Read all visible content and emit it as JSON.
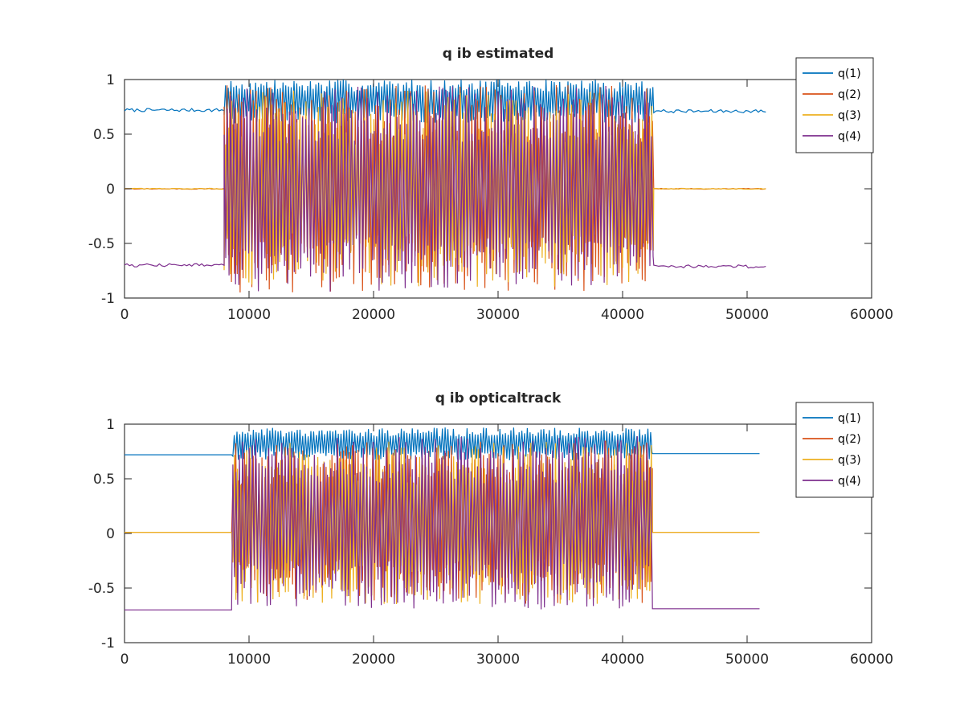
{
  "chart_data": [
    {
      "type": "line",
      "title": "q ib estimated",
      "xlabel": "",
      "ylabel": "",
      "xlim": [
        0,
        60000
      ],
      "ylim": [
        -1,
        1
      ],
      "xticks": [
        0,
        10000,
        20000,
        30000,
        40000,
        50000,
        60000
      ],
      "xtick_labels": [
        "0",
        "10000",
        "20000",
        "30000",
        "40000",
        "50000",
        "60000"
      ],
      "yticks": [
        -1,
        -0.5,
        0,
        0.5,
        1
      ],
      "ytick_labels": [
        "-1",
        "-0.5",
        "0",
        "0.5",
        "1"
      ],
      "grid": false,
      "legend_position": "top-right",
      "x_end": 51600,
      "active_range": [
        8000,
        42500
      ],
      "series": [
        {
          "name": "q(1)",
          "color": "#0072BD",
          "rest_values": [
            0.72,
            0.71
          ],
          "noise": 0.015,
          "active_level": 0.8,
          "active_spread": 0.2
        },
        {
          "name": "q(2)",
          "color": "#D95319",
          "rest_values": [
            0.0,
            0.0
          ],
          "noise": 0.004,
          "active_level": 0.0,
          "active_spread": 0.95
        },
        {
          "name": "q(3)",
          "color": "#EDB120",
          "rest_values": [
            0.0,
            0.0
          ],
          "noise": 0.004,
          "active_level": 0.0,
          "active_spread": 0.9
        },
        {
          "name": "q(4)",
          "color": "#7E2F8E",
          "rest_values": [
            -0.7,
            -0.71
          ],
          "noise": 0.015,
          "active_level": 0.0,
          "active_spread": 0.95
        }
      ]
    },
    {
      "type": "line",
      "title": "q ib opticaltrack",
      "xlabel": "",
      "ylabel": "",
      "xlim": [
        0,
        60000
      ],
      "ylim": [
        -1,
        1
      ],
      "xticks": [
        0,
        10000,
        20000,
        30000,
        40000,
        50000,
        60000
      ],
      "xtick_labels": [
        "0",
        "10000",
        "20000",
        "30000",
        "40000",
        "50000",
        "60000"
      ],
      "yticks": [
        -1,
        -0.5,
        0,
        0.5,
        1
      ],
      "ytick_labels": [
        "-1",
        "-0.5",
        "0",
        "0.5",
        "1"
      ],
      "grid": false,
      "legend_position": "top-right",
      "x_end": 51000,
      "active_range": [
        8700,
        42400
      ],
      "series": [
        {
          "name": "q(1)",
          "color": "#0072BD",
          "rest_values": [
            0.72,
            0.73
          ],
          "noise": 0.0,
          "active_level": 0.82,
          "active_spread": 0.15
        },
        {
          "name": "q(2)",
          "color": "#D95319",
          "rest_values": [
            0.01,
            0.01
          ],
          "noise": 0.0,
          "active_level": 0.1,
          "active_spread": 0.75
        },
        {
          "name": "q(3)",
          "color": "#EDB120",
          "rest_values": [
            0.01,
            0.01
          ],
          "noise": 0.0,
          "active_level": 0.1,
          "active_spread": 0.75
        },
        {
          "name": "q(4)",
          "color": "#7E2F8E",
          "rest_values": [
            -0.7,
            -0.69
          ],
          "noise": 0.0,
          "active_level": 0.1,
          "active_spread": 0.8
        }
      ]
    }
  ]
}
